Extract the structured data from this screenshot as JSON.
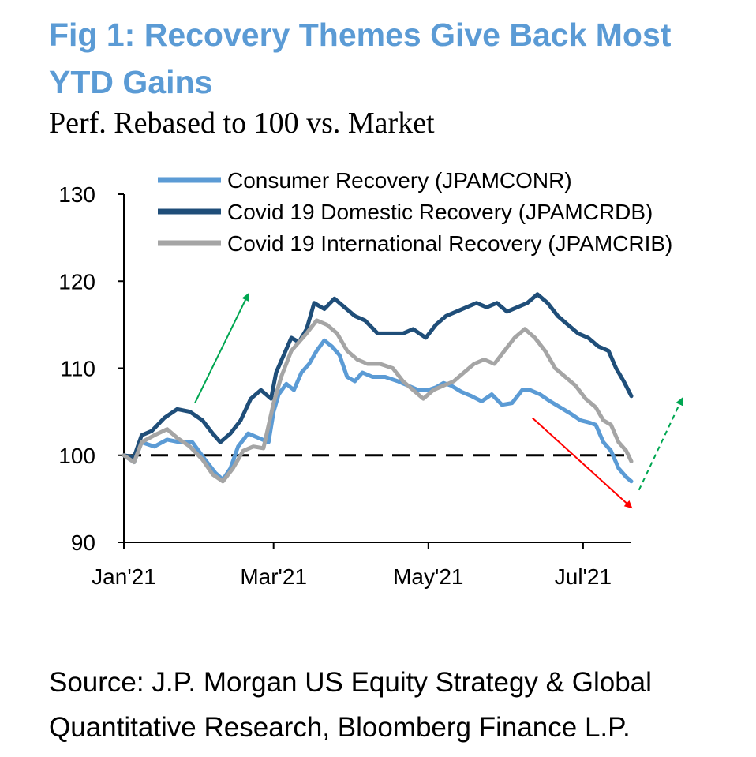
{
  "title": "Fig 1: Recovery Themes Give Back Most YTD Gains",
  "subtitle": "Perf. Rebased to 100 vs. Market",
  "source": "Source: J.P. Morgan US Equity Strategy & Global Quantitative Research, Bloomberg Finance L.P.",
  "chart_data": {
    "type": "line",
    "xlabel": "",
    "ylabel": "",
    "ylim": [
      90,
      130
    ],
    "y_ticks": [
      90,
      100,
      110,
      120,
      130
    ],
    "x_range": [
      "2021-01-01",
      "2021-07-20"
    ],
    "x_ticks": [
      {
        "date": "2021-01-01",
        "label": "Jan'21"
      },
      {
        "date": "2021-03-01",
        "label": "Mar'21"
      },
      {
        "date": "2021-05-01",
        "label": "May'21"
      },
      {
        "date": "2021-07-01",
        "label": "Jul'21"
      }
    ],
    "reference_line": {
      "y": 100,
      "style": "dashed",
      "color": "#000000"
    },
    "legend_position": "top",
    "series": [
      {
        "name": "Consumer Recovery (JPAMCONR)",
        "color": "#5b9bd5",
        "points": [
          [
            "2021-01-01",
            100.0
          ],
          [
            "2021-01-05",
            99.2
          ],
          [
            "2021-01-08",
            101.5
          ],
          [
            "2021-01-13",
            101.0
          ],
          [
            "2021-01-18",
            101.8
          ],
          [
            "2021-01-23",
            101.5
          ],
          [
            "2021-01-28",
            101.5
          ],
          [
            "2021-02-02",
            99.5
          ],
          [
            "2021-02-06",
            98.0
          ],
          [
            "2021-02-09",
            97.2
          ],
          [
            "2021-02-12",
            98.5
          ],
          [
            "2021-02-15",
            101.0
          ],
          [
            "2021-02-19",
            102.5
          ],
          [
            "2021-02-23",
            102.0
          ],
          [
            "2021-02-27",
            101.5
          ],
          [
            "2021-03-01",
            105.0
          ],
          [
            "2021-03-03",
            107.0
          ],
          [
            "2021-03-06",
            108.2
          ],
          [
            "2021-03-09",
            107.5
          ],
          [
            "2021-03-12",
            109.5
          ],
          [
            "2021-03-15",
            110.5
          ],
          [
            "2021-03-18",
            112.0
          ],
          [
            "2021-03-21",
            113.2
          ],
          [
            "2021-03-24",
            112.5
          ],
          [
            "2021-03-27",
            111.5
          ],
          [
            "2021-03-30",
            109.0
          ],
          [
            "2021-04-02",
            108.5
          ],
          [
            "2021-04-05",
            109.5
          ],
          [
            "2021-04-09",
            109.0
          ],
          [
            "2021-04-14",
            109.0
          ],
          [
            "2021-04-19",
            108.5
          ],
          [
            "2021-04-23",
            108.0
          ],
          [
            "2021-04-27",
            107.5
          ],
          [
            "2021-05-01",
            107.5
          ],
          [
            "2021-05-04",
            107.8
          ],
          [
            "2021-05-07",
            108.3
          ],
          [
            "2021-05-10",
            108.0
          ],
          [
            "2021-05-14",
            107.3
          ],
          [
            "2021-05-18",
            106.8
          ],
          [
            "2021-05-22",
            106.2
          ],
          [
            "2021-05-26",
            107.0
          ],
          [
            "2021-05-30",
            105.8
          ],
          [
            "2021-06-03",
            106.0
          ],
          [
            "2021-06-07",
            107.5
          ],
          [
            "2021-06-10",
            107.5
          ],
          [
            "2021-06-14",
            107.0
          ],
          [
            "2021-06-18",
            106.2
          ],
          [
            "2021-06-22",
            105.5
          ],
          [
            "2021-06-26",
            104.8
          ],
          [
            "2021-06-30",
            104.0
          ],
          [
            "2021-07-03",
            103.8
          ],
          [
            "2021-07-06",
            103.5
          ],
          [
            "2021-07-09",
            101.5
          ],
          [
            "2021-07-12",
            100.5
          ],
          [
            "2021-07-15",
            98.5
          ],
          [
            "2021-07-18",
            97.5
          ],
          [
            "2021-07-20",
            97.0
          ]
        ]
      },
      {
        "name": "Covid 19 Domestic Recovery (JPAMCRDB)",
        "color": "#1f4e79",
        "points": [
          [
            "2021-01-01",
            100.0
          ],
          [
            "2021-01-05",
            99.8
          ],
          [
            "2021-01-08",
            102.3
          ],
          [
            "2021-01-12",
            102.8
          ],
          [
            "2021-01-17",
            104.3
          ],
          [
            "2021-01-22",
            105.3
          ],
          [
            "2021-01-27",
            105.0
          ],
          [
            "2021-02-01",
            104.0
          ],
          [
            "2021-02-05",
            102.5
          ],
          [
            "2021-02-08",
            101.5
          ],
          [
            "2021-02-12",
            102.5
          ],
          [
            "2021-02-16",
            104.0
          ],
          [
            "2021-02-20",
            106.5
          ],
          [
            "2021-02-24",
            107.5
          ],
          [
            "2021-02-28",
            106.5
          ],
          [
            "2021-03-02",
            109.5
          ],
          [
            "2021-03-05",
            111.5
          ],
          [
            "2021-03-08",
            113.5
          ],
          [
            "2021-03-11",
            113.0
          ],
          [
            "2021-03-14",
            114.5
          ],
          [
            "2021-03-17",
            117.5
          ],
          [
            "2021-03-21",
            116.8
          ],
          [
            "2021-03-25",
            118.0
          ],
          [
            "2021-03-29",
            117.0
          ],
          [
            "2021-04-02",
            116.0
          ],
          [
            "2021-04-06",
            115.5
          ],
          [
            "2021-04-11",
            114.0
          ],
          [
            "2021-04-16",
            114.0
          ],
          [
            "2021-04-21",
            114.0
          ],
          [
            "2021-04-25",
            114.5
          ],
          [
            "2021-04-30",
            113.5
          ],
          [
            "2021-05-04",
            115.0
          ],
          [
            "2021-05-08",
            116.0
          ],
          [
            "2021-05-12",
            116.5
          ],
          [
            "2021-05-16",
            117.0
          ],
          [
            "2021-05-20",
            117.5
          ],
          [
            "2021-05-24",
            117.0
          ],
          [
            "2021-05-28",
            117.5
          ],
          [
            "2021-06-01",
            116.5
          ],
          [
            "2021-06-05",
            117.0
          ],
          [
            "2021-06-09",
            117.5
          ],
          [
            "2021-06-13",
            118.5
          ],
          [
            "2021-06-17",
            117.5
          ],
          [
            "2021-06-21",
            116.0
          ],
          [
            "2021-06-25",
            115.0
          ],
          [
            "2021-06-29",
            114.0
          ],
          [
            "2021-07-03",
            113.5
          ],
          [
            "2021-07-07",
            112.5
          ],
          [
            "2021-07-11",
            112.0
          ],
          [
            "2021-07-14",
            110.0
          ],
          [
            "2021-07-17",
            108.5
          ],
          [
            "2021-07-20",
            106.8
          ]
        ]
      },
      {
        "name": "Covid 19 International Recovery (JPAMCRIB)",
        "color": "#a5a5a5",
        "points": [
          [
            "2021-01-01",
            100.0
          ],
          [
            "2021-01-05",
            99.2
          ],
          [
            "2021-01-08",
            101.5
          ],
          [
            "2021-01-13",
            102.3
          ],
          [
            "2021-01-18",
            103.0
          ],
          [
            "2021-01-22",
            102.0
          ],
          [
            "2021-01-27",
            101.0
          ],
          [
            "2021-02-01",
            99.5
          ],
          [
            "2021-02-05",
            97.8
          ],
          [
            "2021-02-09",
            97.0
          ],
          [
            "2021-02-13",
            98.5
          ],
          [
            "2021-02-17",
            100.5
          ],
          [
            "2021-02-21",
            101.0
          ],
          [
            "2021-02-25",
            100.8
          ],
          [
            "2021-03-01",
            106.0
          ],
          [
            "2021-03-04",
            109.0
          ],
          [
            "2021-03-08",
            112.0
          ],
          [
            "2021-03-11",
            113.0
          ],
          [
            "2021-03-14",
            114.0
          ],
          [
            "2021-03-18",
            115.5
          ],
          [
            "2021-03-22",
            115.0
          ],
          [
            "2021-03-26",
            114.0
          ],
          [
            "2021-03-30",
            112.0
          ],
          [
            "2021-04-03",
            111.0
          ],
          [
            "2021-04-07",
            110.5
          ],
          [
            "2021-04-12",
            110.5
          ],
          [
            "2021-04-17",
            110.0
          ],
          [
            "2021-04-21",
            108.5
          ],
          [
            "2021-04-25",
            107.5
          ],
          [
            "2021-04-29",
            106.5
          ],
          [
            "2021-05-03",
            107.5
          ],
          [
            "2021-05-07",
            108.0
          ],
          [
            "2021-05-11",
            108.5
          ],
          [
            "2021-05-15",
            109.5
          ],
          [
            "2021-05-19",
            110.5
          ],
          [
            "2021-05-23",
            111.0
          ],
          [
            "2021-05-27",
            110.5
          ],
          [
            "2021-05-31",
            112.0
          ],
          [
            "2021-06-04",
            113.5
          ],
          [
            "2021-06-08",
            114.5
          ],
          [
            "2021-06-12",
            113.5
          ],
          [
            "2021-06-16",
            112.0
          ],
          [
            "2021-06-20",
            110.0
          ],
          [
            "2021-06-24",
            109.0
          ],
          [
            "2021-06-28",
            108.0
          ],
          [
            "2021-07-02",
            106.5
          ],
          [
            "2021-07-06",
            105.5
          ],
          [
            "2021-07-09",
            104.0
          ],
          [
            "2021-07-12",
            103.5
          ],
          [
            "2021-07-15",
            101.5
          ],
          [
            "2021-07-18",
            100.5
          ],
          [
            "2021-07-20",
            99.3
          ]
        ]
      }
    ],
    "annotations": [
      {
        "kind": "arrow",
        "direction": "up-right",
        "style": "solid",
        "color": "#00a651",
        "from": [
          "2021-01-29",
          106.0
        ],
        "to": [
          "2021-02-19",
          118.5
        ]
      },
      {
        "kind": "arrow",
        "direction": "down-right",
        "style": "solid",
        "color": "#ff0000",
        "from": [
          "2021-06-11",
          104.3
        ],
        "to": [
          "2021-07-20",
          94.0
        ]
      },
      {
        "kind": "arrow",
        "direction": "up-right",
        "style": "dashed",
        "color": "#00a651",
        "from": [
          "2021-07-23",
          96.0
        ],
        "to": [
          "2021-08-09",
          106.5
        ]
      }
    ]
  }
}
